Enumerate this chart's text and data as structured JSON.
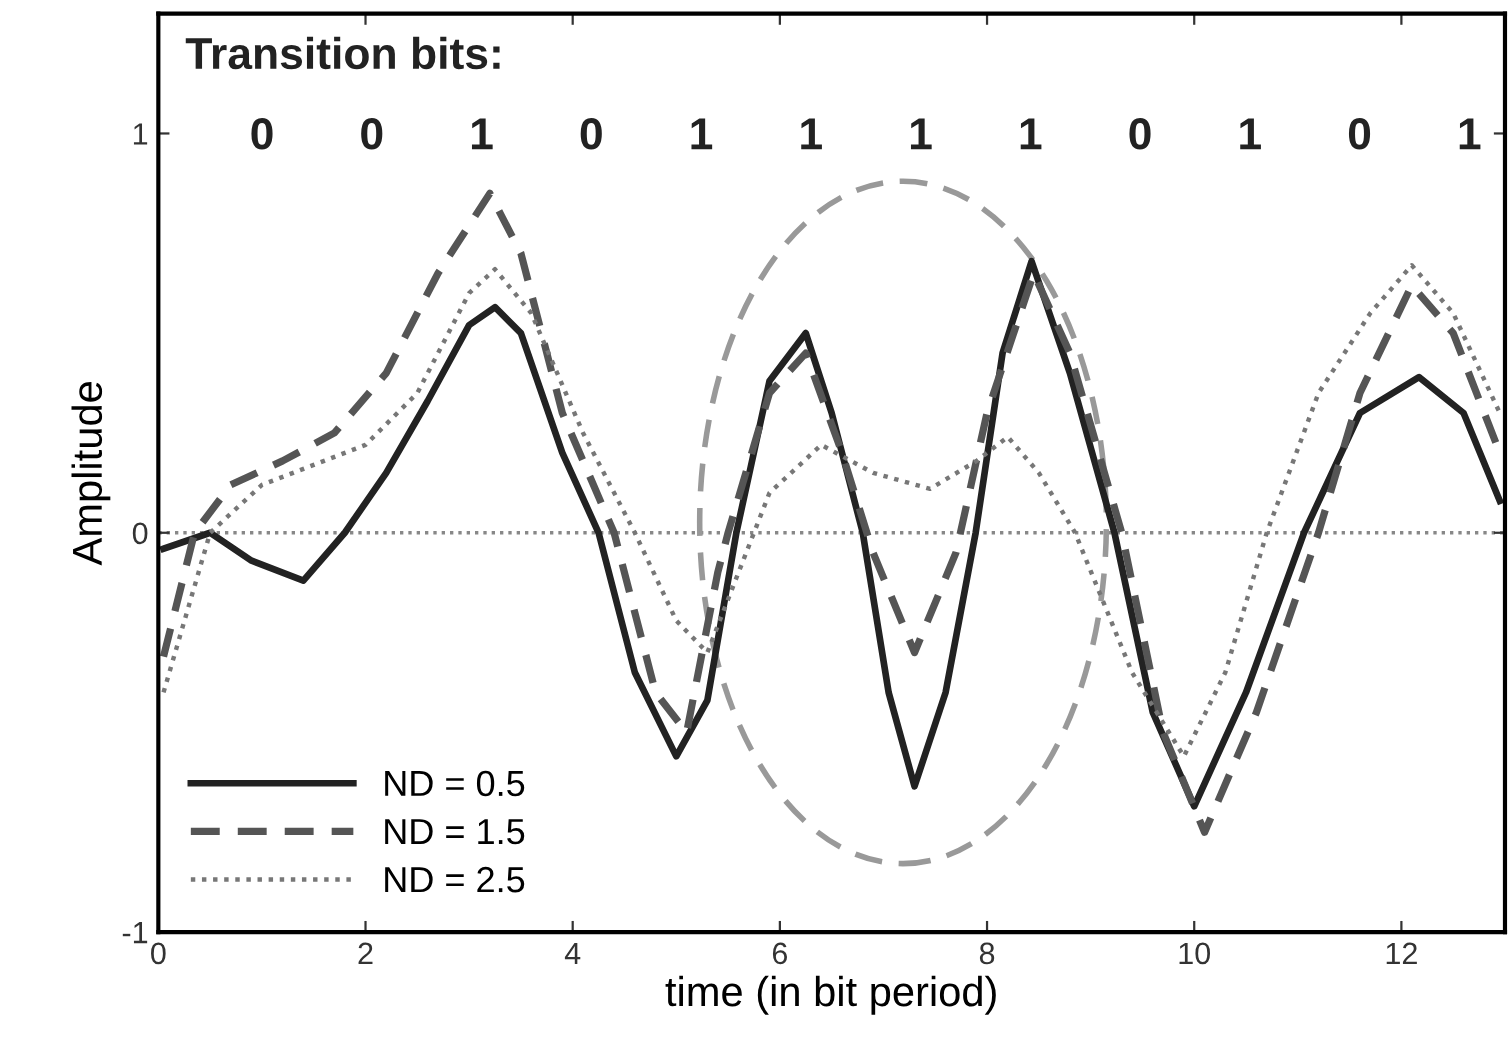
{
  "chart_data": {
    "type": "line",
    "xlabel": "time (in bit period)",
    "ylabel": "Amplitude",
    "annotations": [
      "Transition bits:",
      "0",
      "0",
      "1",
      "0",
      "1",
      "1",
      "1",
      "1",
      "0",
      "1",
      "0",
      "1"
    ],
    "series": [
      {
        "name": "ND = 0.5",
        "color": "#222222",
        "line_style": "solid",
        "x": [
          0.05,
          0.5,
          0.9,
          1.4,
          1.8,
          2.2,
          2.6,
          3.0,
          3.25,
          3.5,
          3.9,
          4.25,
          4.6,
          5.0,
          5.3,
          5.58,
          5.9,
          6.25,
          6.5,
          6.8,
          7.05,
          7.3,
          7.6,
          7.89,
          8.15,
          8.43,
          8.8,
          9.23,
          9.6,
          10.0,
          10.5,
          11.06,
          11.6,
          12.17,
          12.6,
          12.95
        ],
        "values": [
          -0.04,
          0.0,
          -0.07,
          -0.12,
          0.0,
          0.15,
          0.33,
          0.52,
          0.565,
          0.5,
          0.2,
          0.0,
          -0.35,
          -0.56,
          -0.42,
          0.0,
          0.38,
          0.5,
          0.3,
          0.0,
          -0.4,
          -0.635,
          -0.4,
          0.0,
          0.45,
          0.68,
          0.4,
          0.0,
          -0.45,
          -0.685,
          -0.4,
          0.0,
          0.3,
          0.39,
          0.3,
          0.08
        ]
      },
      {
        "name": "ND = 1.5",
        "color": "#555555",
        "line_style": "dashed",
        "x": [
          0.05,
          0.35,
          0.7,
          1.2,
          1.7,
          2.2,
          2.7,
          3.2,
          3.5,
          3.9,
          4.4,
          4.8,
          5.1,
          5.4,
          5.5,
          5.9,
          6.25,
          6.6,
          6.9,
          7.3,
          7.7,
          8.0,
          8.45,
          8.8,
          9.3,
          9.7,
          10.1,
          10.6,
          11.2,
          11.6,
          12.1,
          12.5,
          12.95
        ],
        "values": [
          -0.31,
          0.0,
          0.12,
          0.18,
          0.25,
          0.4,
          0.65,
          0.85,
          0.7,
          0.3,
          0.0,
          -0.4,
          -0.5,
          -0.1,
          0.0,
          0.35,
          0.45,
          0.2,
          -0.05,
          -0.3,
          -0.05,
          0.3,
          0.65,
          0.45,
          0.0,
          -0.5,
          -0.75,
          -0.45,
          0.0,
          0.35,
          0.62,
          0.5,
          0.2
        ]
      },
      {
        "name": "ND = 2.5",
        "color": "#777777",
        "line_style": "dotted",
        "x": [
          0.05,
          0.5,
          1.0,
          1.5,
          2.0,
          2.5,
          3.0,
          3.25,
          3.6,
          4.1,
          4.6,
          5.0,
          5.3,
          5.6,
          5.9,
          6.4,
          6.9,
          7.45,
          7.9,
          8.2,
          8.5,
          8.85,
          9.4,
          9.9,
          10.3,
          10.7,
          11.2,
          11.7,
          12.1,
          12.5,
          12.95
        ],
        "values": [
          -0.4,
          0.0,
          0.12,
          0.17,
          0.22,
          0.35,
          0.6,
          0.66,
          0.55,
          0.25,
          0.0,
          -0.22,
          -0.3,
          -0.1,
          0.1,
          0.22,
          0.15,
          0.11,
          0.18,
          0.24,
          0.15,
          0.0,
          -0.35,
          -0.56,
          -0.35,
          0.0,
          0.35,
          0.55,
          0.67,
          0.55,
          0.3
        ]
      }
    ],
    "ref_lines": [
      {
        "axis": "y",
        "value": 0,
        "color": "#888888",
        "line_style": "dotted"
      }
    ],
    "xlim": [
      0,
      13
    ],
    "ylim": [
      -1,
      1.3
    ],
    "xticks": [
      0,
      2,
      4,
      6,
      8,
      10,
      12
    ],
    "yticks": [
      -1,
      0,
      1
    ],
    "grid": false,
    "legend": "bottom left",
    "marker": "none"
  }
}
